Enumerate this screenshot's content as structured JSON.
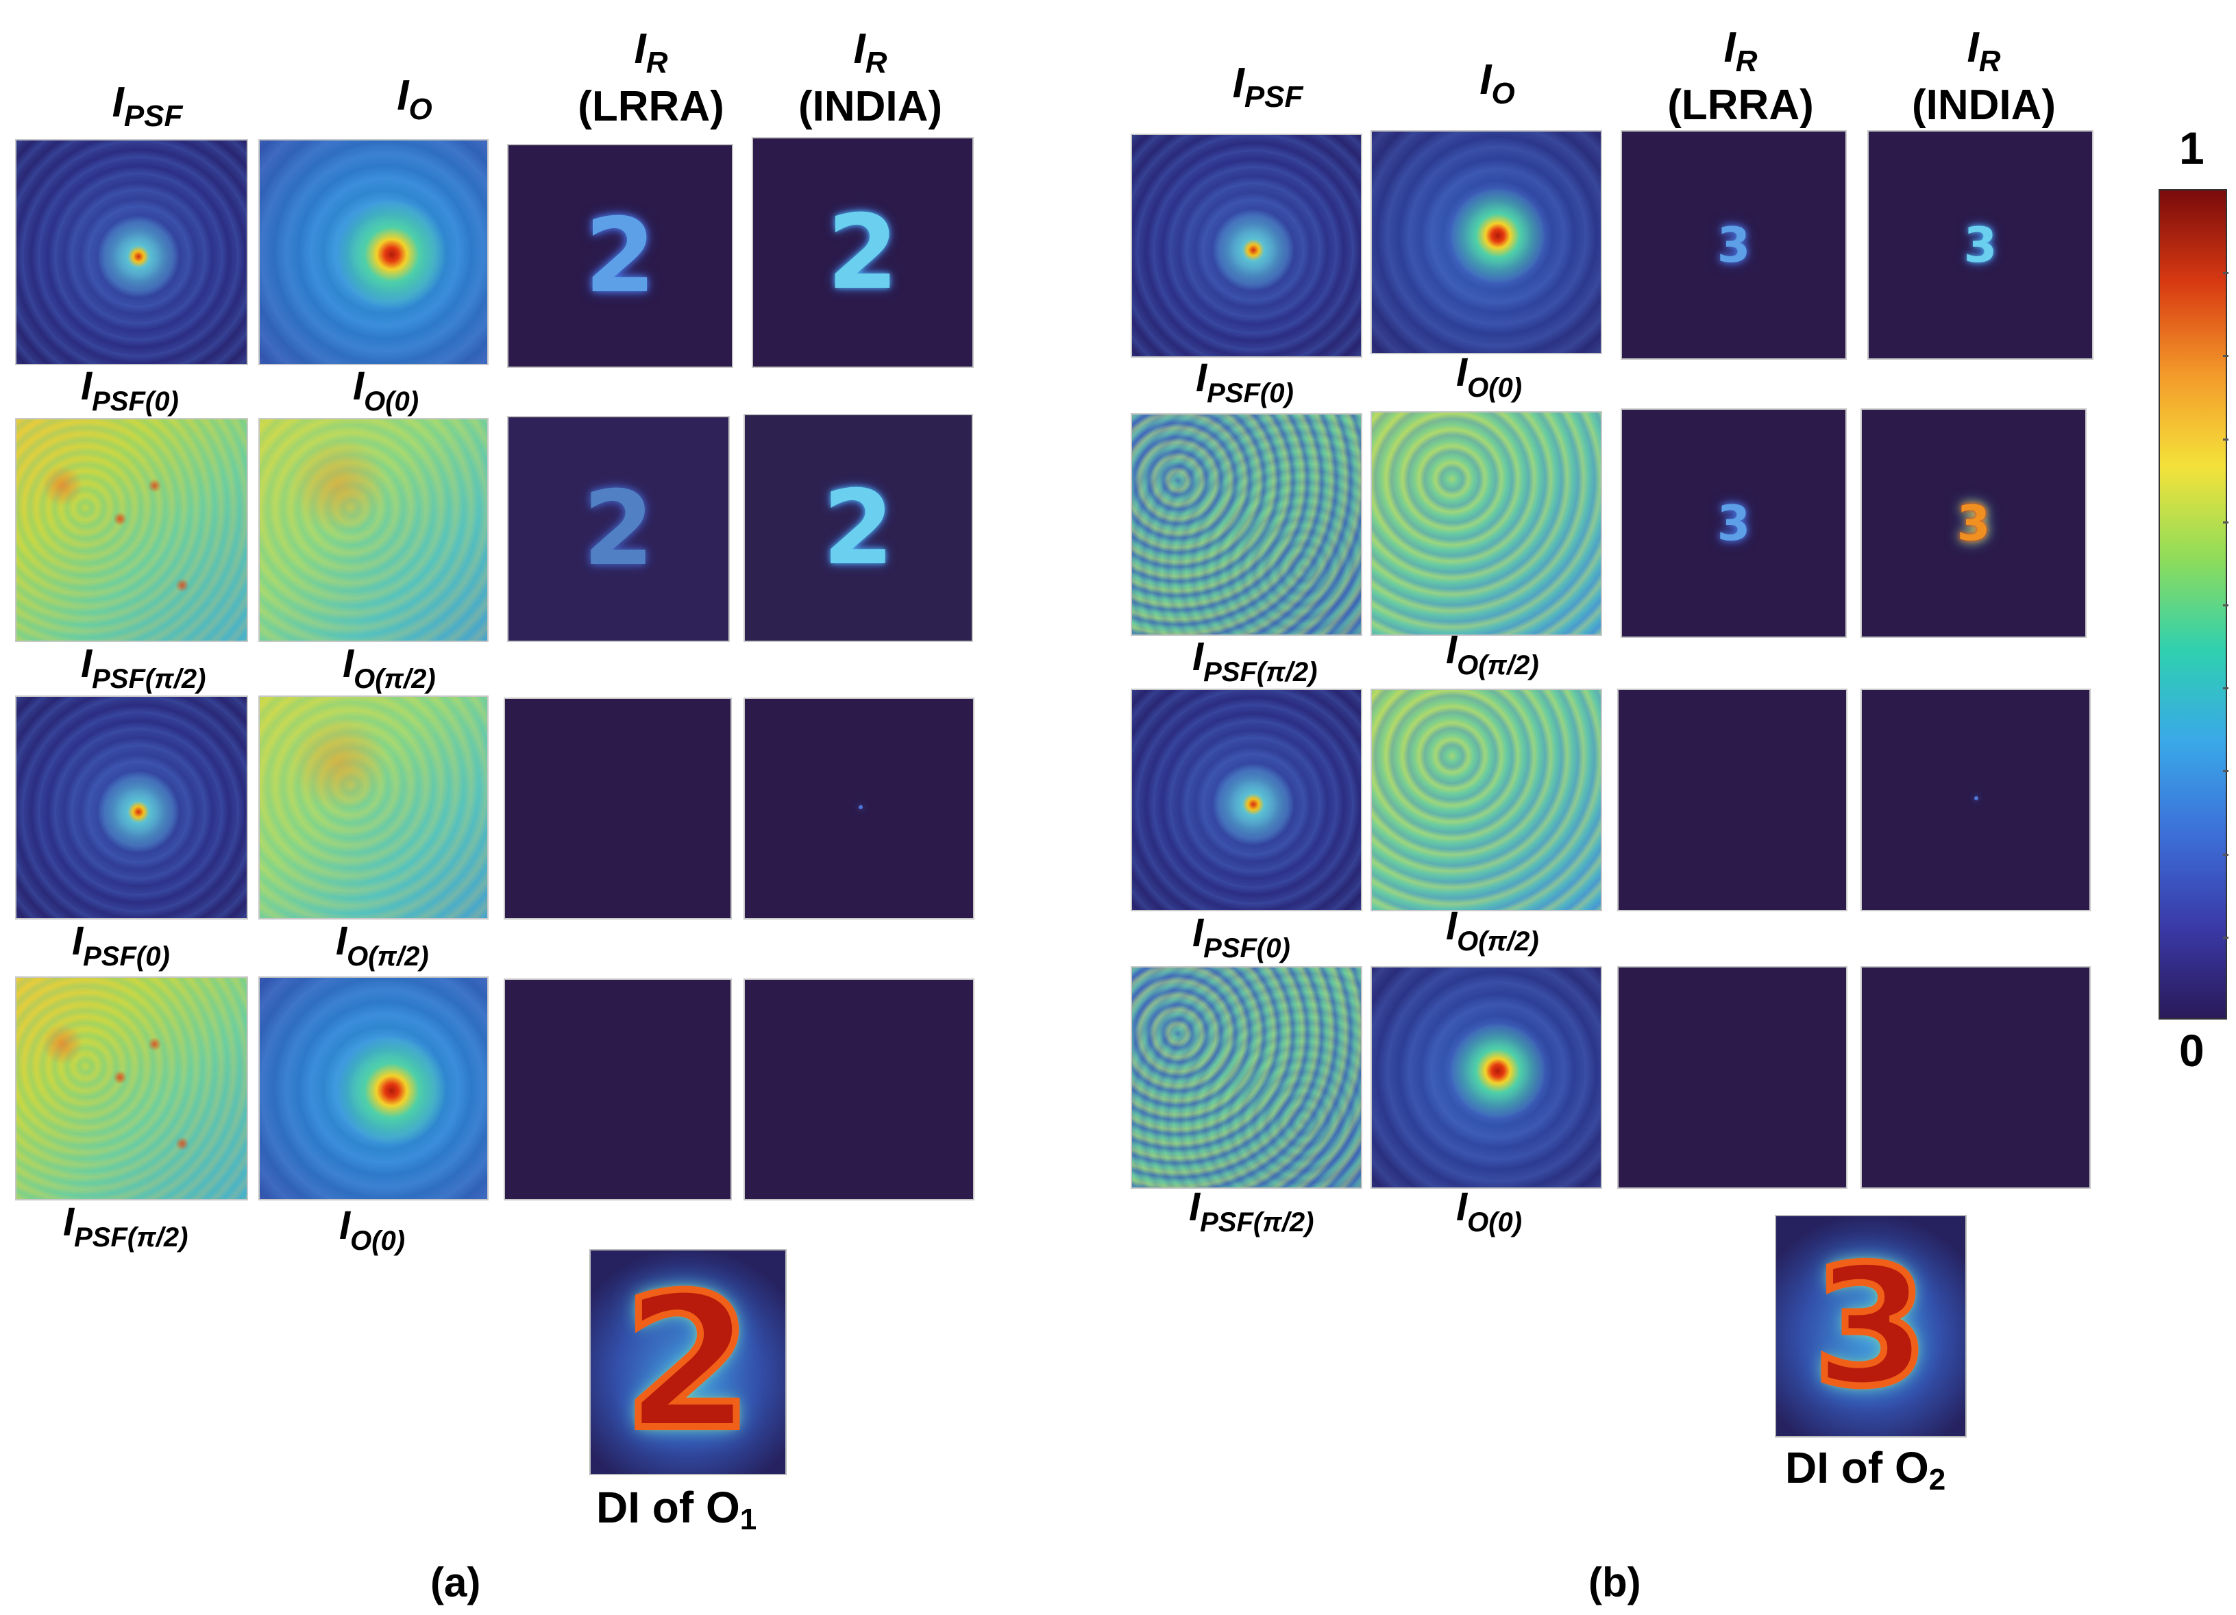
{
  "colorbar": {
    "max_label": "1",
    "min_label": "0",
    "colors": [
      "#7a0b0b",
      "#d83a12",
      "#f39a2a",
      "#f4e23a",
      "#8fdc5a",
      "#2fd0b0",
      "#3aa8e8",
      "#3c6fd8",
      "#3a3aa8",
      "#2a1a5a"
    ]
  },
  "panel_a": {
    "letter": "(a)",
    "headers": {
      "psf": {
        "main": "I",
        "sub": "PSF"
      },
      "obj": {
        "main": "I",
        "sub": "O"
      },
      "lrra": {
        "main": "I",
        "sub": "R",
        "method": "(LRRA)"
      },
      "india": {
        "main": "I",
        "sub": "R",
        "method": "(INDIA)"
      }
    },
    "row_labels": [
      {
        "psf": {
          "main": "I",
          "sub": "PSF(0)"
        },
        "obj": {
          "main": "I",
          "sub": "O(0)"
        }
      },
      {
        "psf": {
          "main": "I",
          "sub": "PSF(π/2)"
        },
        "obj": {
          "main": "I",
          "sub": "O(π/2)"
        }
      },
      {
        "psf": {
          "main": "I",
          "sub": "PSF(0)"
        },
        "obj": {
          "main": "I",
          "sub": "O(π/2)"
        }
      },
      {
        "psf": {
          "main": "I",
          "sub": "PSF(π/2)"
        },
        "obj": {
          "main": "I",
          "sub": "O(0)"
        }
      }
    ],
    "digit": "2",
    "di_label": {
      "main": "DI of O",
      "sub": "1"
    }
  },
  "panel_b": {
    "letter": "(b)",
    "headers": {
      "psf": {
        "main": "I",
        "sub": "PSF"
      },
      "obj": {
        "main": "I",
        "sub": "O"
      },
      "lrra": {
        "main": "I",
        "sub": "R",
        "method": "(LRRA)"
      },
      "india": {
        "main": "I",
        "sub": "R",
        "method": "(INDIA)"
      }
    },
    "row_labels": [
      {
        "psf": {
          "main": "I",
          "sub": "PSF(0)"
        },
        "obj": {
          "main": "I",
          "sub": "O(0)"
        }
      },
      {
        "psf": {
          "main": "I",
          "sub": "PSF(π/2)"
        },
        "obj": {
          "main": "I",
          "sub": "O(π/2)"
        }
      },
      {
        "psf": {
          "main": "I",
          "sub": "PSF(0)"
        },
        "obj": {
          "main": "I",
          "sub": "O(π/2)"
        }
      },
      {
        "psf": {
          "main": "I",
          "sub": "PSF(π/2)"
        },
        "obj": {
          "main": "I",
          "sub": "O(0)"
        }
      }
    ],
    "digit": "3",
    "di_label": {
      "main": "DI of O",
      "sub": "2"
    }
  }
}
